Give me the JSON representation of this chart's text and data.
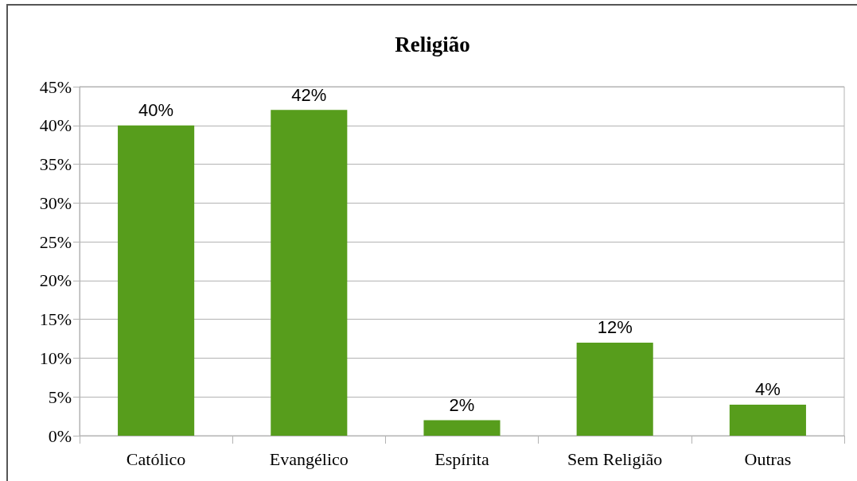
{
  "chart_data": {
    "type": "bar",
    "title": "Religião",
    "categories": [
      "Católico",
      "Evangélico",
      "Espírita",
      "Sem Religião",
      "Outras"
    ],
    "values": [
      40,
      42,
      2,
      12,
      4
    ],
    "color": "#579d1c",
    "value_labels": [
      "40%",
      "42%",
      "2%",
      "12%",
      "4%"
    ],
    "ylim": [
      0,
      45
    ],
    "yticks": [
      {
        "value": 0,
        "label": "0%"
      },
      {
        "value": 5,
        "label": "5%"
      },
      {
        "value": 10,
        "label": "10%"
      },
      {
        "value": 15,
        "label": "15%"
      },
      {
        "value": 20,
        "label": "20%"
      },
      {
        "value": 25,
        "label": "25%"
      },
      {
        "value": 30,
        "label": "30%"
      },
      {
        "value": 35,
        "label": "35%"
      },
      {
        "value": 40,
        "label": "40%"
      },
      {
        "value": 45,
        "label": "45%"
      }
    ],
    "grid": "y"
  }
}
